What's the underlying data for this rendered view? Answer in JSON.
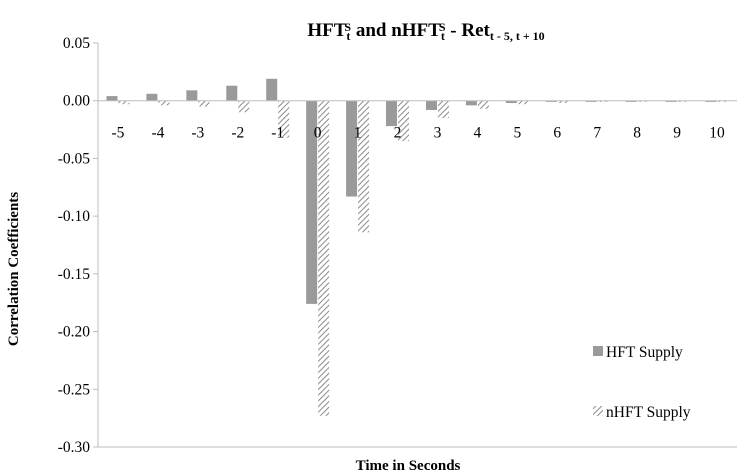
{
  "chart_data": {
    "type": "bar",
    "title": {
      "parts": [
        {
          "text": "HFT",
          "style": "normal"
        },
        {
          "text": "t",
          "style": "sub"
        },
        {
          "text": "S",
          "style": "sup"
        },
        {
          "text": " and nHFT",
          "style": "normal"
        },
        {
          "text": "t",
          "style": "sub"
        },
        {
          "text": "S",
          "style": "sup"
        },
        {
          "text": " - Ret",
          "style": "normal"
        },
        {
          "text": "t - 5, t + 10",
          "style": "sub"
        }
      ]
    },
    "xlabel": "Time in Seconds",
    "ylabel": "Correlation Coefficients",
    "categories": [
      "-5",
      "-4",
      "-3",
      "-2",
      "-1",
      "0",
      "1",
      "2",
      "3",
      "4",
      "5",
      "6",
      "7",
      "8",
      "9",
      "10"
    ],
    "ylim": [
      -0.3,
      0.05
    ],
    "yticks": [
      "0.05",
      "0.00",
      "-0.05",
      "-0.10",
      "-0.15",
      "-0.20",
      "-0.25",
      "-0.30"
    ],
    "ytick_values": [
      0.05,
      0.0,
      -0.05,
      -0.1,
      -0.15,
      -0.2,
      -0.25,
      -0.3
    ],
    "series": [
      {
        "name": "HFT Supply",
        "color": "#9a9a9a",
        "pattern": "solid",
        "values": [
          0.004,
          0.006,
          0.009,
          0.013,
          0.019,
          -0.176,
          -0.083,
          -0.022,
          -0.008,
          -0.004,
          -0.002,
          -0.001,
          -0.001,
          -0.001,
          -0.001,
          -0.001
        ]
      },
      {
        "name": "nHFT Supply",
        "color": "#8a8a8a",
        "pattern": "diagonal-hatch",
        "values": [
          -0.003,
          -0.004,
          -0.005,
          -0.01,
          -0.032,
          -0.273,
          -0.114,
          -0.035,
          -0.015,
          -0.007,
          -0.003,
          -0.002,
          -0.001,
          -0.001,
          -0.001,
          -0.001
        ]
      }
    ],
    "grid": false,
    "legend_position": "bottom-right"
  }
}
